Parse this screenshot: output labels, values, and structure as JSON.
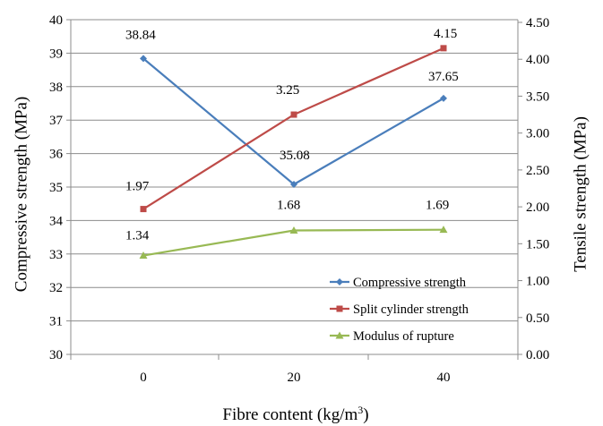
{
  "chart_data": {
    "type": "line",
    "xlabel": "Fibre content (kg/m",
    "xlabel_sup": "3",
    "xlabel_tail": ")",
    "ylabel_left": "Compressive strength (MPa)",
    "ylabel_right": "Tensile strength (MPa)",
    "categories": [
      "0",
      "20",
      "40"
    ],
    "ylim_left": [
      30,
      40
    ],
    "ylim_right": [
      0,
      4.5
    ],
    "yticks_left": [
      "30",
      "31",
      "32",
      "33",
      "34",
      "35",
      "36",
      "37",
      "38",
      "39",
      "40"
    ],
    "yticks_right": [
      "0.00",
      "0.50",
      "1.00",
      "1.50",
      "2.00",
      "2.50",
      "3.00",
      "3.50",
      "4.00",
      "4.50"
    ],
    "grid": "horizontal",
    "legend_position": "bottom-right",
    "series": [
      {
        "name": "Compressive strength",
        "axis": "left",
        "values": [
          38.84,
          35.08,
          37.65
        ],
        "labels": [
          "38.84",
          "35.08",
          "37.65"
        ],
        "color": "#4a7ebb",
        "marker": "diamond"
      },
      {
        "name": "Split cylinder strength",
        "axis": "right",
        "values": [
          1.97,
          3.25,
          4.15
        ],
        "labels": [
          "1.97",
          "3.25",
          "4.15"
        ],
        "color": "#be4b48",
        "marker": "square"
      },
      {
        "name": "Modulus of rupture",
        "axis": "right",
        "values": [
          1.34,
          1.68,
          1.69
        ],
        "labels": [
          "1.34",
          "1.68",
          "1.69"
        ],
        "color": "#98b954",
        "marker": "triangle"
      }
    ]
  }
}
